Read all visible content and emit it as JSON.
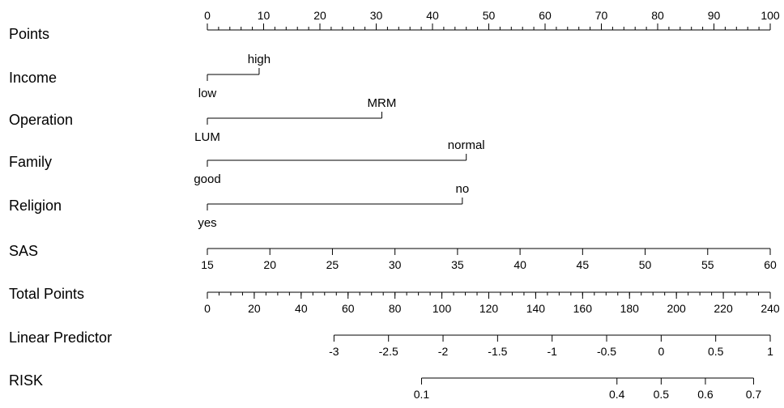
{
  "chart_data": {
    "type": "nomogram",
    "rows": [
      {
        "id": "points",
        "label": "Points",
        "kind": "scale",
        "labels_position": "above",
        "range": [
          0,
          100
        ],
        "major_ticks": [
          0,
          10,
          20,
          30,
          40,
          50,
          60,
          70,
          80,
          90,
          100
        ],
        "minor_step": 2,
        "tick_labels": [
          "0",
          "10",
          "20",
          "30",
          "40",
          "50",
          "60",
          "70",
          "80",
          "90",
          "100"
        ]
      },
      {
        "id": "income",
        "label": "Income",
        "kind": "factor",
        "levels": [
          {
            "name": "low",
            "points": 0,
            "label_position": "below"
          },
          {
            "name": "high",
            "points": 9.2,
            "label_position": "above"
          }
        ]
      },
      {
        "id": "operation",
        "label": "Operation",
        "kind": "factor",
        "levels": [
          {
            "name": "LUM",
            "points": 0,
            "label_position": "below"
          },
          {
            "name": "MRM",
            "points": 31,
            "label_position": "above"
          }
        ]
      },
      {
        "id": "family",
        "label": "Family",
        "kind": "factor",
        "levels": [
          {
            "name": "good",
            "points": 0,
            "label_position": "below"
          },
          {
            "name": "normal",
            "points": 46,
            "label_position": "above"
          }
        ]
      },
      {
        "id": "religion",
        "label": "Religion",
        "kind": "factor",
        "levels": [
          {
            "name": "yes",
            "points": 0,
            "label_position": "below"
          },
          {
            "name": "no",
            "points": 45.3,
            "label_position": "above"
          }
        ]
      },
      {
        "id": "sas",
        "label": "SAS",
        "kind": "scale",
        "labels_position": "below",
        "range": [
          15,
          60
        ],
        "points_range": [
          0,
          100
        ],
        "major_ticks": [
          15,
          20,
          25,
          30,
          35,
          40,
          45,
          50,
          55,
          60
        ],
        "tick_labels": [
          "15",
          "20",
          "25",
          "30",
          "35",
          "40",
          "45",
          "50",
          "55",
          "60"
        ]
      },
      {
        "id": "total_points",
        "label": "Total Points",
        "kind": "scale",
        "labels_position": "below",
        "range": [
          0,
          240
        ],
        "major_ticks": [
          0,
          20,
          40,
          60,
          80,
          100,
          120,
          140,
          160,
          180,
          200,
          220,
          240
        ],
        "minor_step": 5,
        "tick_labels": [
          "0",
          "20",
          "40",
          "60",
          "80",
          "100",
          "120",
          "140",
          "160",
          "180",
          "200",
          "220",
          "240"
        ]
      },
      {
        "id": "linear_predictor",
        "label": "Linear Predictor",
        "kind": "scale",
        "labels_position": "below",
        "total_points_at": [
          [
            -3,
            54
          ],
          [
            1,
            240
          ]
        ],
        "major_ticks": [
          -3,
          -2.5,
          -2,
          -1.5,
          -1,
          -0.5,
          0,
          0.5,
          1
        ],
        "tick_labels": [
          "-3",
          "-2.5",
          "-2",
          "-1.5",
          "-1",
          "-0.5",
          "0",
          "0.5",
          "1"
        ]
      },
      {
        "id": "risk",
        "label": "RISK",
        "kind": "probability",
        "labels_position": "below",
        "link": "logit",
        "linear_predictor_range": [
          -3,
          1
        ],
        "major_ticks": [
          0.1,
          0.4,
          0.5,
          0.6,
          0.7
        ],
        "tick_labels": [
          "0.1",
          "0.4",
          "0.5",
          "0.6",
          "0.7"
        ]
      }
    ]
  }
}
